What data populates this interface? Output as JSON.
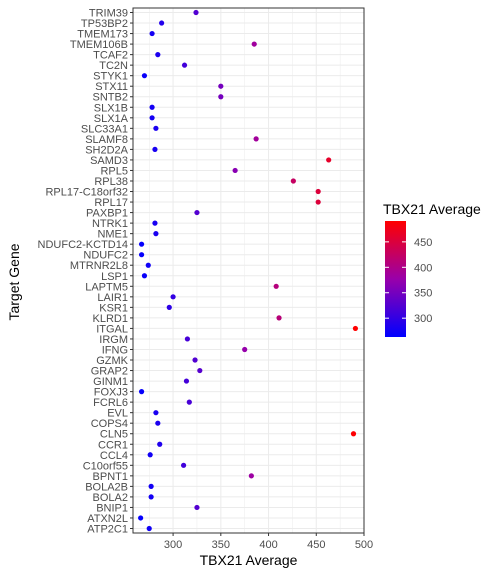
{
  "chart_data": {
    "type": "scatter",
    "xlabel": "TBX21 Average",
    "ylabel": "Target Gene",
    "xlim": [
      258,
      500
    ],
    "x_ticks": [
      300,
      350,
      400,
      450,
      500
    ],
    "grid": true,
    "legend": {
      "title": "TBX21 Average",
      "position": "right",
      "range": [
        263,
        491
      ],
      "ticks": [
        300,
        350,
        400,
        450
      ],
      "colors": {
        "low": "#0000ff",
        "mid": "#9900aa",
        "high": "#ff0000"
      }
    },
    "categories": [
      "TRIM39",
      "TP53BP2",
      "TMEM173",
      "TMEM106B",
      "TCAF2",
      "TC2N",
      "STYK1",
      "STX11",
      "SNTB2",
      "SLX1B",
      "SLX1A",
      "SLC33A1",
      "SLAMF8",
      "SH2D2A",
      "SAMD3",
      "RPL5",
      "RPL38",
      "RPL17-C18orf32",
      "RPL17",
      "PAXBP1",
      "NTRK1",
      "NME1",
      "NDUFC2-KCTD14",
      "NDUFC2",
      "MTRNR2L8",
      "LSP1",
      "LAPTM5",
      "LAIR1",
      "KSR1",
      "KLRD1",
      "ITGAL",
      "IRGM",
      "IFNG",
      "GZMK",
      "GRAP2",
      "GINM1",
      "FOXJ3",
      "FCRL6",
      "EVL",
      "COPS4",
      "CLN5",
      "CCR1",
      "CCL4",
      "C10orf55",
      "BPNT1",
      "BOLA2B",
      "BOLA2",
      "BNIP1",
      "ATXN2L",
      "ATP2C1"
    ],
    "values": [
      324,
      288,
      278,
      385,
      284,
      312,
      270,
      350,
      350,
      278,
      278,
      282,
      387,
      281,
      463,
      365,
      426,
      452,
      452,
      325,
      281,
      282,
      267,
      267,
      274,
      270,
      408,
      300,
      296,
      411,
      491,
      315,
      375,
      323,
      328,
      314,
      267,
      317,
      282,
      284,
      489,
      286,
      276,
      311,
      382,
      277,
      277,
      325,
      266,
      275
    ]
  }
}
